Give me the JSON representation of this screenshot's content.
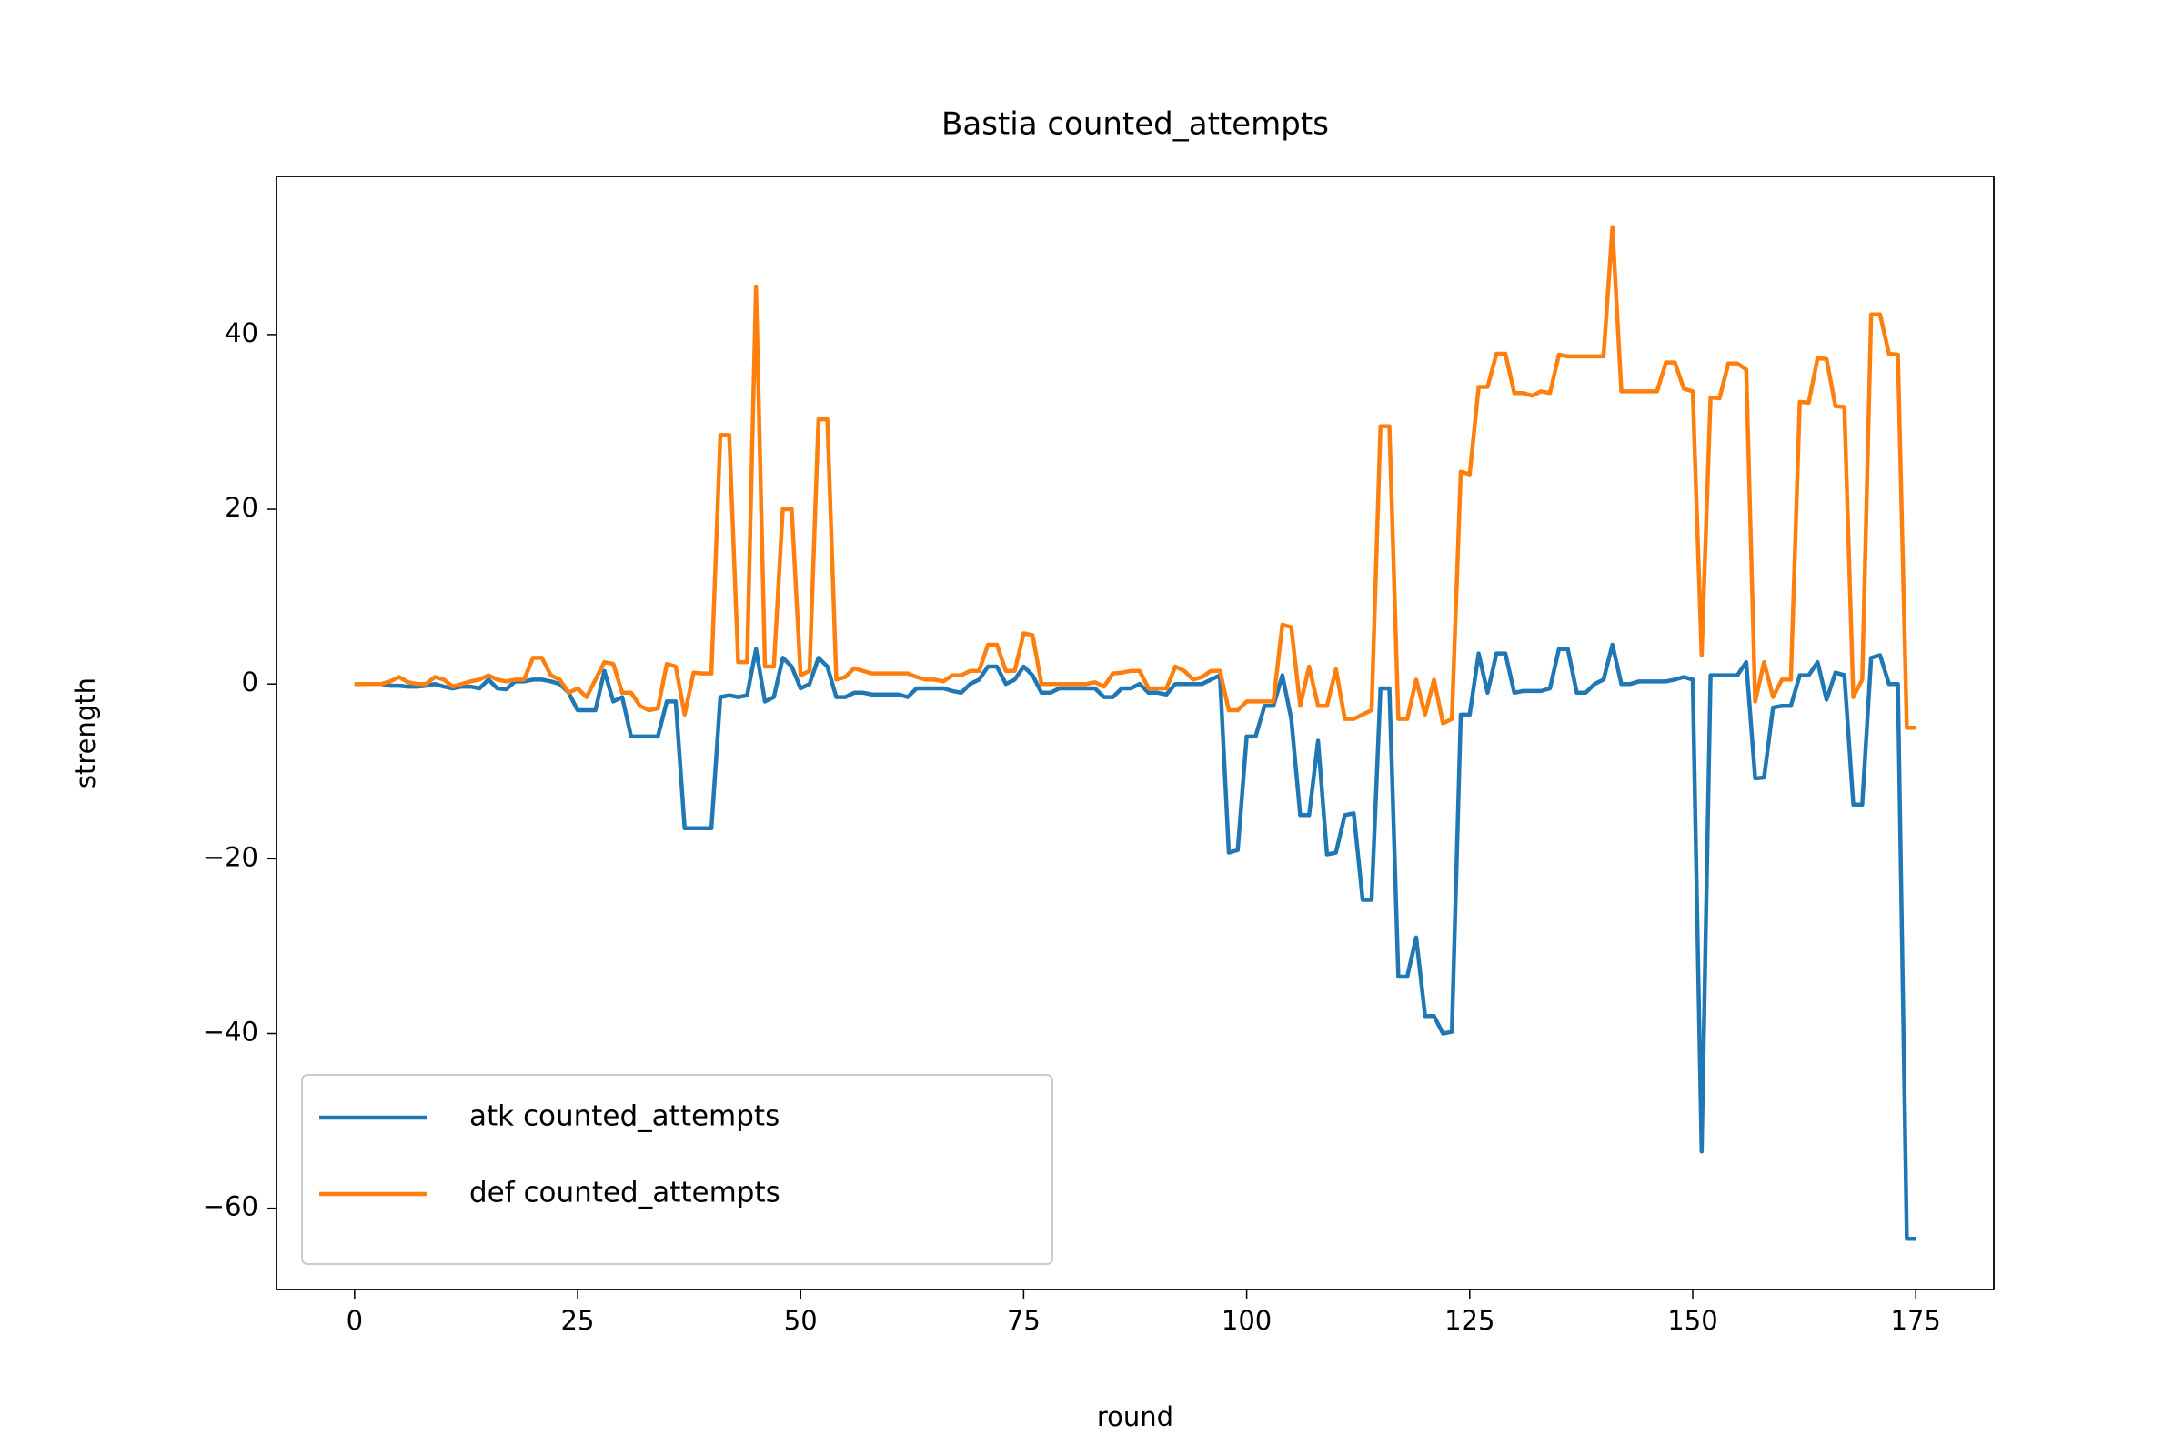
{
  "chart_data": {
    "type": "line",
    "title": "Bastia counted_attempts",
    "xlabel": "round",
    "ylabel": "strength",
    "x": [
      0,
      1,
      2,
      3,
      4,
      5,
      6,
      7,
      8,
      9,
      10,
      11,
      12,
      13,
      14,
      15,
      16,
      17,
      18,
      19,
      20,
      21,
      22,
      23,
      24,
      25,
      26,
      27,
      28,
      29,
      30,
      31,
      32,
      33,
      34,
      35,
      36,
      37,
      38,
      39,
      40,
      41,
      42,
      43,
      44,
      45,
      46,
      47,
      48,
      49,
      50,
      51,
      52,
      53,
      54,
      55,
      56,
      57,
      58,
      59,
      60,
      61,
      62,
      63,
      64,
      65,
      66,
      67,
      68,
      69,
      70,
      71,
      72,
      73,
      74,
      75,
      76,
      77,
      78,
      79,
      80,
      81,
      82,
      83,
      84,
      85,
      86,
      87,
      88,
      89,
      90,
      91,
      92,
      93,
      94,
      95,
      96,
      97,
      98,
      99,
      100,
      101,
      102,
      103,
      104,
      105,
      106,
      107,
      108,
      109,
      110,
      111,
      112,
      113,
      114,
      115,
      116,
      117,
      118,
      119,
      120,
      121,
      122,
      123,
      124,
      125,
      126,
      127,
      128,
      129,
      130,
      131,
      132,
      133,
      134,
      135,
      136,
      137,
      138,
      139,
      140,
      141,
      142,
      143,
      144,
      145,
      146,
      147,
      148,
      149,
      150,
      151,
      152,
      153,
      154,
      155,
      156,
      157,
      158,
      159,
      160,
      161,
      162,
      163,
      164,
      165,
      166,
      167,
      168,
      169,
      170,
      171,
      172,
      173,
      174,
      175
    ],
    "series": [
      {
        "name": "atk counted_attempts",
        "color": "#1f77b4",
        "values": [
          0,
          0,
          0,
          0,
          -0.2,
          -0.2,
          -0.3,
          -0.3,
          -0.2,
          0,
          -0.3,
          -0.5,
          -0.3,
          -0.3,
          -0.5,
          0.5,
          -0.5,
          -0.6,
          0.3,
          0.3,
          0.5,
          0.5,
          0.3,
          0,
          -1,
          -3,
          -3,
          -3,
          1.5,
          -2,
          -1.5,
          -6,
          -6,
          -6,
          -6,
          -2,
          -2,
          -16.5,
          -16.5,
          -16.5,
          -16.5,
          -1.5,
          -1.3,
          -1.5,
          -1.3,
          4,
          -2,
          -1.5,
          3,
          2,
          -0.5,
          0,
          3,
          2,
          -1.5,
          -1.5,
          -1,
          -1,
          -1.2,
          -1.2,
          -1.2,
          -1.2,
          -1.5,
          -0.5,
          -0.5,
          -0.5,
          -0.5,
          -0.8,
          -1,
          0,
          0.5,
          2,
          2,
          0,
          0.5,
          2,
          1,
          -1,
          -1,
          -0.5,
          -0.5,
          -0.5,
          -0.5,
          -0.5,
          -1.5,
          -1.5,
          -0.5,
          -0.5,
          0,
          -1,
          -1,
          -1.2,
          0,
          0,
          0,
          0,
          0.5,
          1,
          -19.3,
          -19,
          -6,
          -6,
          -2.5,
          -2.5,
          1,
          -4,
          -15,
          -15,
          -6.5,
          -19.5,
          -19.3,
          -15,
          -14.8,
          -24.7,
          -24.7,
          -0.5,
          -0.5,
          -33.5,
          -33.5,
          -29,
          -38,
          -38,
          -40,
          -39.8,
          -3.5,
          -3.5,
          3.5,
          -1,
          3.5,
          3.5,
          -1,
          -0.8,
          -0.8,
          -0.8,
          -0.5,
          4,
          4,
          -1,
          -1,
          0,
          0.5,
          4.5,
          0,
          0,
          0.3,
          0.3,
          0.3,
          0.3,
          0.5,
          0.8,
          0.5,
          -53.5,
          1,
          1,
          1,
          1,
          2.5,
          -10.8,
          -10.7,
          -2.7,
          -2.5,
          -2.5,
          1,
          1,
          2.5,
          -1.8,
          1.3,
          1,
          -13.8,
          -13.8,
          3,
          3.3,
          0,
          0,
          -63.5,
          -63.5
        ]
      },
      {
        "name": "def counted_attempts",
        "color": "#ff7f0e",
        "values": [
          0,
          0,
          0,
          0,
          0.3,
          0.8,
          0.2,
          0,
          0,
          0.8,
          0.5,
          -0.3,
          0,
          0.3,
          0.5,
          1,
          0.5,
          0.3,
          0.5,
          0.5,
          3,
          3,
          1,
          0.5,
          -1,
          -0.5,
          -1.5,
          0.5,
          2.5,
          2.3,
          -1,
          -1,
          -2.5,
          -3,
          -2.8,
          2.3,
          2,
          -3.5,
          1.3,
          1.2,
          1.2,
          28.5,
          28.5,
          2.5,
          2.5,
          45.5,
          2,
          2,
          20,
          20,
          1,
          1.5,
          30.3,
          30.3,
          0.5,
          0.8,
          1.8,
          1.5,
          1.2,
          1.2,
          1.2,
          1.2,
          1.2,
          0.8,
          0.5,
          0.5,
          0.3,
          1,
          1,
          1.5,
          1.5,
          4.5,
          4.5,
          1.5,
          1.5,
          5.8,
          5.6,
          0,
          0,
          0,
          0,
          0,
          0,
          0.2,
          -0.3,
          1.2,
          1.3,
          1.5,
          1.5,
          -0.5,
          -0.5,
          -0.5,
          2,
          1.5,
          0.5,
          0.8,
          1.5,
          1.5,
          -3,
          -3,
          -2,
          -2,
          -2,
          -2,
          6.8,
          6.5,
          -2.5,
          2,
          -2.5,
          -2.5,
          1.7,
          -4,
          -4,
          -3.5,
          -3,
          29.5,
          29.5,
          -4,
          -4,
          0.5,
          -3.5,
          0.5,
          -4.5,
          -4,
          24.3,
          24,
          34,
          34,
          37.8,
          37.8,
          33.3,
          33.3,
          33,
          33.5,
          33.3,
          37.7,
          37.5,
          37.5,
          37.5,
          37.5,
          37.5,
          52.3,
          33.5,
          33.5,
          33.5,
          33.5,
          33.5,
          36.8,
          36.8,
          33.8,
          33.5,
          3.3,
          32.8,
          32.7,
          36.7,
          36.7,
          36,
          -2,
          2.5,
          -1.5,
          0.5,
          0.5,
          32.3,
          32.2,
          37.3,
          37.2,
          31.8,
          31.7,
          -1.5,
          0.5,
          42.3,
          42.3,
          37.8,
          37.7,
          -5,
          -5
        ]
      }
    ],
    "xlim": [
      -8.75,
      183.75
    ],
    "xticks": [
      0,
      25,
      50,
      75,
      100,
      125,
      150,
      175
    ],
    "ylim": [
      -69.3,
      58.1
    ],
    "yticks": [
      {
        "value": -60,
        "label": "−60"
      },
      {
        "value": -40,
        "label": "−40"
      },
      {
        "value": -20,
        "label": "−20"
      },
      0,
      20,
      40
    ],
    "grid": false,
    "legend": "lower left"
  }
}
